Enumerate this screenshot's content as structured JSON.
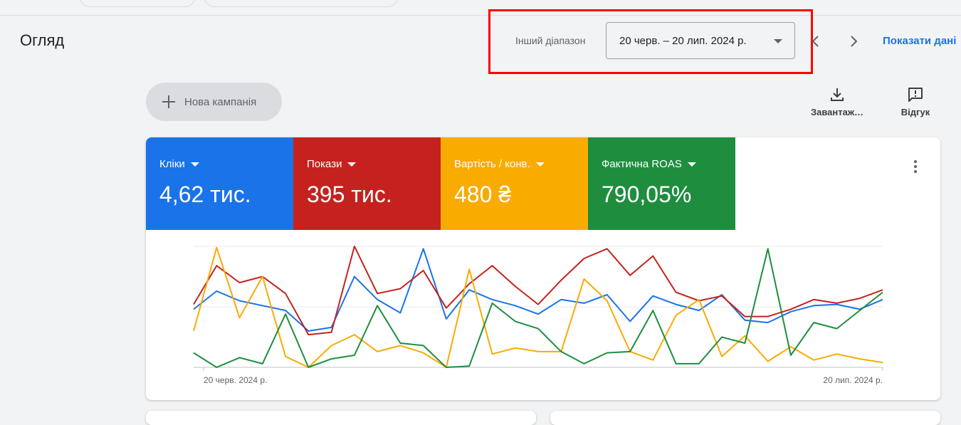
{
  "header": {
    "title": "Огляд",
    "range_label": "Інший діапазон",
    "range_value": "20 черв. – 20 лип. 2024 р.",
    "show_data": "Показати дані"
  },
  "toolbar": {
    "new_campaign": "Нова кампанія",
    "download": "Завантаж…",
    "feedback": "Відгук"
  },
  "metrics": [
    {
      "name": "Кліки",
      "value": "4,62 тис.",
      "color": "#1a73e8"
    },
    {
      "name": "Покази",
      "value": "395 тис.",
      "color": "#c5221f"
    },
    {
      "name": "Вартість / конв.",
      "value": "480 ₴",
      "color": "#f9ab00"
    },
    {
      "name": "Фактична ROAS",
      "value": "790,05%",
      "color": "#1e8e3e"
    }
  ],
  "chart_data": {
    "type": "line",
    "x_start_label": "20 черв. 2024 р.",
    "x_end_label": "20 лип. 2024 р.",
    "grid": true,
    "series_normalized_note": "",
    "series": [
      {
        "metric": "Кліки",
        "color": "#1a73e8",
        "values": [
          0.48,
          0.63,
          0.55,
          0.51,
          0.47,
          0.3,
          0.33,
          0.75,
          0.56,
          0.45,
          0.98,
          0.4,
          0.64,
          0.56,
          0.51,
          0.44,
          0.56,
          0.53,
          0.6,
          0.38,
          0.59,
          0.52,
          0.47,
          0.6,
          0.39,
          0.37,
          0.46,
          0.51,
          0.52,
          0.48,
          0.56
        ]
      },
      {
        "metric": "Покази",
        "color": "#c5221f",
        "values": [
          0.52,
          0.84,
          0.7,
          0.75,
          0.61,
          0.27,
          0.29,
          1.0,
          0.61,
          0.65,
          0.8,
          0.49,
          0.69,
          0.84,
          0.67,
          0.52,
          0.72,
          0.9,
          0.98,
          0.76,
          0.92,
          0.62,
          0.55,
          0.59,
          0.42,
          0.42,
          0.48,
          0.56,
          0.53,
          0.57,
          0.64
        ]
      },
      {
        "metric": "Вартість / конв.",
        "color": "#f9ab00",
        "values": [
          0.3,
          0.99,
          0.41,
          0.75,
          0.09,
          0.0,
          0.18,
          0.27,
          0.13,
          0.18,
          0.12,
          0.0,
          0.81,
          0.11,
          0.16,
          0.13,
          0.13,
          0.73,
          0.55,
          0.13,
          0.06,
          0.43,
          0.56,
          0.09,
          0.26,
          0.05,
          0.17,
          0.06,
          0.11,
          0.07,
          0.04
        ]
      },
      {
        "metric": "Фактична ROAS",
        "color": "#1e8e3e",
        "values": [
          0.12,
          0.0,
          0.08,
          0.03,
          0.44,
          0.0,
          0.07,
          0.1,
          0.51,
          0.2,
          0.18,
          0.0,
          0.01,
          0.53,
          0.38,
          0.32,
          0.13,
          0.03,
          0.12,
          0.13,
          0.47,
          0.03,
          0.03,
          0.25,
          0.2,
          0.98,
          0.1,
          0.37,
          0.32,
          0.47,
          0.62
        ]
      }
    ]
  }
}
